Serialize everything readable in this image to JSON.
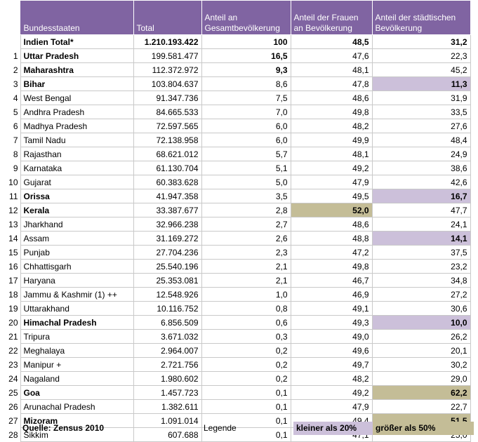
{
  "headers": {
    "state": "Bundesstaaten",
    "total": "Total",
    "share": "Anteil an Gesamtbevölkerung",
    "women": "Anteil der Frauen an Bevölkerung",
    "urban": "Anteil der städtischen Bevölkerung"
  },
  "total_row": {
    "name": "Indien Total*",
    "total": "1.210.193.422",
    "share": "100",
    "women": "48,5",
    "urban": "31,2"
  },
  "rows": [
    {
      "rank": "1",
      "name": "Uttar Pradesh",
      "total": "199.581.477",
      "share": "16,5",
      "women": "47,6",
      "urban": "22,3",
      "bold": true,
      "share_bold": true,
      "women_hl": "",
      "urban_hl": ""
    },
    {
      "rank": "2",
      "name": "Maharashtra",
      "total": "112.372.972",
      "share": "9,3",
      "women": "48,1",
      "urban": "45,2",
      "bold": true,
      "share_bold": true,
      "women_hl": "",
      "urban_hl": ""
    },
    {
      "rank": "3",
      "name": "Bihar",
      "total": "103.804.637",
      "share": "8,6",
      "women": "47,8",
      "urban": "11,3",
      "bold": true,
      "share_bold": false,
      "women_hl": "",
      "urban_hl": "lav"
    },
    {
      "rank": "4",
      "name": "West Bengal",
      "total": "91.347.736",
      "share": "7,5",
      "women": "48,6",
      "urban": "31,9",
      "bold": false,
      "share_bold": false,
      "women_hl": "",
      "urban_hl": ""
    },
    {
      "rank": "5",
      "name": "Andhra Pradesh",
      "total": "84.665.533",
      "share": "7,0",
      "women": "49,8",
      "urban": "33,5",
      "bold": false,
      "share_bold": false,
      "women_hl": "",
      "urban_hl": ""
    },
    {
      "rank": "6",
      "name": "Madhya Pradesh",
      "total": "72.597.565",
      "share": "6,0",
      "women": "48,2",
      "urban": "27,6",
      "bold": false,
      "share_bold": false,
      "women_hl": "",
      "urban_hl": ""
    },
    {
      "rank": "7",
      "name": "Tamil Nadu",
      "total": "72.138.958",
      "share": "6,0",
      "women": "49,9",
      "urban": "48,4",
      "bold": false,
      "share_bold": false,
      "women_hl": "",
      "urban_hl": ""
    },
    {
      "rank": "8",
      "name": "Rajasthan",
      "total": "68.621.012",
      "share": "5,7",
      "women": "48,1",
      "urban": "24,9",
      "bold": false,
      "share_bold": false,
      "women_hl": "",
      "urban_hl": ""
    },
    {
      "rank": "9",
      "name": "Karnataka",
      "total": "61.130.704",
      "share": "5,1",
      "women": "49,2",
      "urban": "38,6",
      "bold": false,
      "share_bold": false,
      "women_hl": "",
      "urban_hl": ""
    },
    {
      "rank": "10",
      "name": "Gujarat",
      "total": "60.383.628",
      "share": "5,0",
      "women": "47,9",
      "urban": "42,6",
      "bold": false,
      "share_bold": false,
      "women_hl": "",
      "urban_hl": ""
    },
    {
      "rank": "11",
      "name": "Orissa",
      "total": "41.947.358",
      "share": "3,5",
      "women": "49,5",
      "urban": "16,7",
      "bold": true,
      "share_bold": false,
      "women_hl": "",
      "urban_hl": "lav"
    },
    {
      "rank": "12",
      "name": "Kerala",
      "total": "33.387.677",
      "share": "2,8",
      "women": "52,0",
      "urban": "47,7",
      "bold": true,
      "share_bold": false,
      "women_hl": "tan",
      "urban_hl": ""
    },
    {
      "rank": "13",
      "name": "Jharkhand",
      "total": "32.966.238",
      "share": "2,7",
      "women": "48,6",
      "urban": "24,1",
      "bold": false,
      "share_bold": false,
      "women_hl": "",
      "urban_hl": ""
    },
    {
      "rank": "14",
      "name": "Assam",
      "total": "31.169.272",
      "share": "2,6",
      "women": "48,8",
      "urban": "14,1",
      "bold": false,
      "share_bold": false,
      "women_hl": "",
      "urban_hl": "lav"
    },
    {
      "rank": "15",
      "name": "Punjab",
      "total": "27.704.236",
      "share": "2,3",
      "women": "47,2",
      "urban": "37,5",
      "bold": false,
      "share_bold": false,
      "women_hl": "",
      "urban_hl": ""
    },
    {
      "rank": "16",
      "name": "Chhattisgarh",
      "total": "25.540.196",
      "share": "2,1",
      "women": "49,8",
      "urban": "23,2",
      "bold": false,
      "share_bold": false,
      "women_hl": "",
      "urban_hl": ""
    },
    {
      "rank": "17",
      "name": "Haryana",
      "total": "25.353.081",
      "share": "2,1",
      "women": "46,7",
      "urban": "34,8",
      "bold": false,
      "share_bold": false,
      "women_hl": "",
      "urban_hl": ""
    },
    {
      "rank": "18",
      "name": "Jammu & Kashmir (1) ++",
      "total": "12.548.926",
      "share": "1,0",
      "women": "46,9",
      "urban": "27,2",
      "bold": false,
      "share_bold": false,
      "women_hl": "",
      "urban_hl": ""
    },
    {
      "rank": "19",
      "name": "Uttarakhand",
      "total": "10.116.752",
      "share": "0,8",
      "women": "49,1",
      "urban": "30,6",
      "bold": false,
      "share_bold": false,
      "women_hl": "",
      "urban_hl": ""
    },
    {
      "rank": "20",
      "name": "Himachal Pradesh",
      "total": "6.856.509",
      "share": "0,6",
      "women": "49,3",
      "urban": "10,0",
      "bold": true,
      "share_bold": false,
      "women_hl": "",
      "urban_hl": "lav"
    },
    {
      "rank": "21",
      "name": "Tripura",
      "total": "3.671.032",
      "share": "0,3",
      "women": "49,0",
      "urban": "26,2",
      "bold": false,
      "share_bold": false,
      "women_hl": "",
      "urban_hl": ""
    },
    {
      "rank": "22",
      "name": "Meghalaya",
      "total": "2.964.007",
      "share": "0,2",
      "women": "49,6",
      "urban": "20,1",
      "bold": false,
      "share_bold": false,
      "women_hl": "",
      "urban_hl": ""
    },
    {
      "rank": "23",
      "name": "Manipur +",
      "total": "2.721.756",
      "share": "0,2",
      "women": "49,7",
      "urban": "30,2",
      "bold": false,
      "share_bold": false,
      "women_hl": "",
      "urban_hl": ""
    },
    {
      "rank": "24",
      "name": "Nagaland",
      "total": "1.980.602",
      "share": "0,2",
      "women": "48,2",
      "urban": "29,0",
      "bold": false,
      "share_bold": false,
      "women_hl": "",
      "urban_hl": ""
    },
    {
      "rank": "25",
      "name": "Goa",
      "total": "1.457.723",
      "share": "0,1",
      "women": "49,2",
      "urban": "62,2",
      "bold": true,
      "share_bold": false,
      "women_hl": "",
      "urban_hl": "tan"
    },
    {
      "rank": "26",
      "name": "Arunachal Pradesh",
      "total": "1.382.611",
      "share": "0,1",
      "women": "47,9",
      "urban": "22,7",
      "bold": false,
      "share_bold": false,
      "women_hl": "",
      "urban_hl": ""
    },
    {
      "rank": "27",
      "name": "Mizoram",
      "total": "1.091.014",
      "share": "0,1",
      "women": "49,4",
      "urban": "51,5",
      "bold": true,
      "share_bold": false,
      "women_hl": "",
      "urban_hl": "tan"
    },
    {
      "rank": "28",
      "name": "Sikkim",
      "total": "607.688",
      "share": "0,1",
      "women": "47,1",
      "urban": "25,0",
      "bold": false,
      "share_bold": false,
      "women_hl": "",
      "urban_hl": ""
    }
  ],
  "footer": {
    "source": "Quelle: Zensus 2010",
    "legend_label": "Legende",
    "legend_low": "kleiner als 20%",
    "legend_high": "größer als 50%"
  },
  "colors": {
    "header_bg": "#8064a2",
    "low_highlight": "#ccc0da",
    "high_highlight": "#c4bd97"
  }
}
